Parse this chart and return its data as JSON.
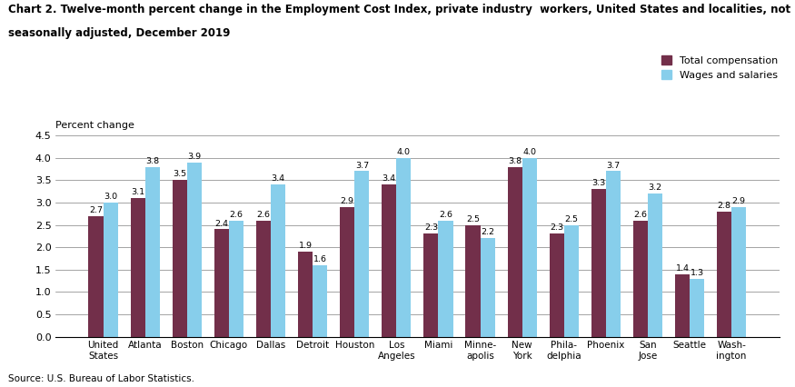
{
  "title_line1": "Chart 2. Twelve-month percent change in the Employment Cost Index, private industry  workers, United States and localities, not",
  "title_line2": "seasonally adjusted, December 2019",
  "ylabel": "Percent change",
  "source": "Source: U.S. Bureau of Labor Statistics.",
  "categories": [
    "United\nStates",
    "Atlanta",
    "Boston",
    "Chicago",
    "Dallas",
    "Detroit",
    "Houston",
    "Los\nAngeles",
    "Miami",
    "Minne-\napolis",
    "New\nYork",
    "Phila-\ndelphia",
    "Phoenix",
    "San\nJose",
    "Seattle",
    "Wash-\nington"
  ],
  "total_compensation": [
    2.7,
    3.1,
    3.5,
    2.4,
    2.6,
    1.9,
    2.9,
    3.4,
    2.3,
    2.5,
    3.8,
    2.3,
    3.3,
    2.6,
    1.4,
    2.8
  ],
  "wages_and_salaries": [
    3.0,
    3.8,
    3.9,
    2.6,
    3.4,
    1.6,
    3.7,
    4.0,
    2.6,
    2.2,
    4.0,
    2.5,
    3.7,
    3.2,
    1.3,
    2.9
  ],
  "color_total": "#722F4A",
  "color_wages": "#87CEEB",
  "ylim": [
    0,
    4.5
  ],
  "yticks": [
    0.0,
    0.5,
    1.0,
    1.5,
    2.0,
    2.5,
    3.0,
    3.5,
    4.0,
    4.5
  ],
  "legend_total": "Total compensation",
  "legend_wages": "Wages and salaries",
  "bar_width": 0.35
}
